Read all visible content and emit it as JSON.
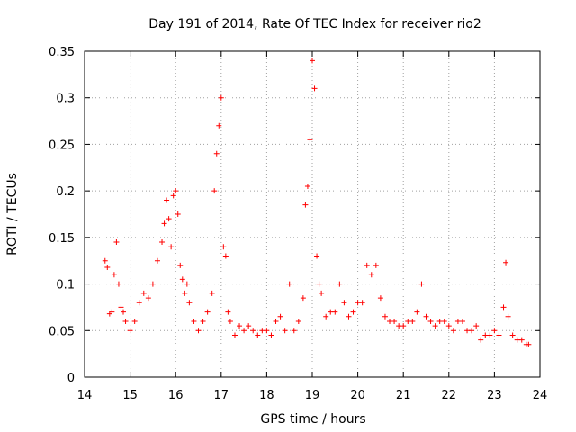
{
  "chart_data": {
    "type": "scatter",
    "title": "Day 191 of 2014, Rate Of TEC Index for receiver rio2",
    "xlabel": "GPS time / hours",
    "ylabel": "ROTI / TECUs",
    "xlim": [
      14,
      24
    ],
    "ylim": [
      0,
      0.35
    ],
    "xticks": [
      14,
      15,
      16,
      17,
      18,
      19,
      20,
      21,
      22,
      23,
      24
    ],
    "xtick_labels": [
      "14",
      "15",
      "16",
      "17",
      "18",
      "19",
      "20",
      "21",
      "22",
      "23",
      "24"
    ],
    "yticks": [
      0,
      0.05,
      0.1,
      0.15,
      0.2,
      0.25,
      0.3,
      0.35
    ],
    "ytick_labels": [
      "0",
      "0.05",
      "0.1",
      "0.15",
      "0.2",
      "0.25",
      "0.3",
      "0.35"
    ],
    "grid": true,
    "marker": "+",
    "marker_color": "#ff0000",
    "series": [
      {
        "name": "rio2",
        "x": [
          14.45,
          14.5,
          14.55,
          14.6,
          14.65,
          14.7,
          14.75,
          14.8,
          14.85,
          14.9,
          15.0,
          15.1,
          15.2,
          15.3,
          15.4,
          15.5,
          15.6,
          15.7,
          15.75,
          15.8,
          15.85,
          15.9,
          15.95,
          16.0,
          16.05,
          16.1,
          16.15,
          16.2,
          16.25,
          16.3,
          16.4,
          16.5,
          16.6,
          16.7,
          16.8,
          16.85,
          16.9,
          16.95,
          17.0,
          17.05,
          17.1,
          17.15,
          17.2,
          17.3,
          17.4,
          17.5,
          17.6,
          17.7,
          17.8,
          17.9,
          18.0,
          18.1,
          18.2,
          18.3,
          18.4,
          18.5,
          18.6,
          18.7,
          18.8,
          18.85,
          18.9,
          18.95,
          19.0,
          19.05,
          19.1,
          19.15,
          19.2,
          19.3,
          19.4,
          19.5,
          19.6,
          19.7,
          19.8,
          19.9,
          20.0,
          20.1,
          20.2,
          20.3,
          20.4,
          20.5,
          20.6,
          20.7,
          20.8,
          20.9,
          21.0,
          21.1,
          21.2,
          21.3,
          21.4,
          21.5,
          21.6,
          21.7,
          21.8,
          21.9,
          22.0,
          22.1,
          22.2,
          22.3,
          22.4,
          22.5,
          22.6,
          22.7,
          22.8,
          22.9,
          23.0,
          23.1,
          23.2,
          23.25,
          23.3,
          23.4,
          23.5,
          23.6,
          23.7,
          23.75
        ],
        "y": [
          0.125,
          0.118,
          0.068,
          0.07,
          0.11,
          0.145,
          0.1,
          0.075,
          0.07,
          0.06,
          0.05,
          0.06,
          0.08,
          0.09,
          0.085,
          0.1,
          0.125,
          0.145,
          0.165,
          0.19,
          0.17,
          0.14,
          0.195,
          0.2,
          0.175,
          0.12,
          0.105,
          0.09,
          0.1,
          0.08,
          0.06,
          0.05,
          0.06,
          0.07,
          0.09,
          0.2,
          0.24,
          0.27,
          0.3,
          0.14,
          0.13,
          0.07,
          0.06,
          0.045,
          0.055,
          0.05,
          0.055,
          0.05,
          0.045,
          0.05,
          0.05,
          0.045,
          0.06,
          0.065,
          0.05,
          0.1,
          0.05,
          0.06,
          0.085,
          0.185,
          0.205,
          0.255,
          0.34,
          0.31,
          0.13,
          0.1,
          0.09,
          0.065,
          0.07,
          0.07,
          0.1,
          0.08,
          0.065,
          0.07,
          0.08,
          0.08,
          0.12,
          0.11,
          0.12,
          0.085,
          0.065,
          0.06,
          0.06,
          0.055,
          0.055,
          0.06,
          0.06,
          0.07,
          0.1,
          0.065,
          0.06,
          0.055,
          0.06,
          0.06,
          0.055,
          0.05,
          0.06,
          0.06,
          0.05,
          0.05,
          0.055,
          0.04,
          0.045,
          0.045,
          0.05,
          0.045,
          0.075,
          0.123,
          0.065,
          0.045,
          0.04,
          0.04,
          0.035,
          0.035
        ]
      }
    ]
  }
}
